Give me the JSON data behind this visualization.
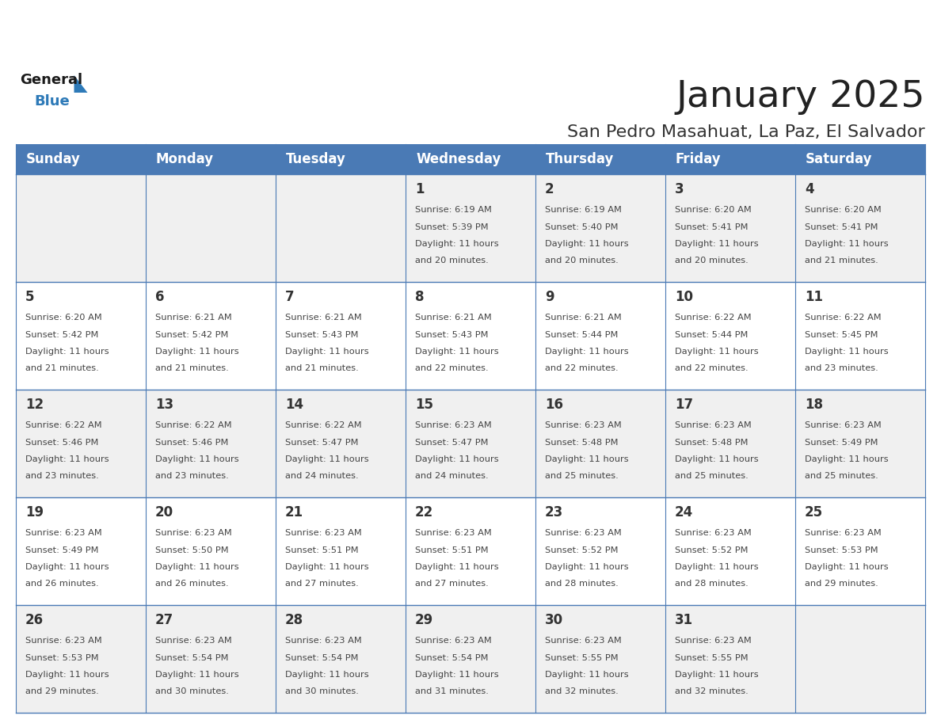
{
  "title": "January 2025",
  "subtitle": "San Pedro Masahuat, La Paz, El Salvador",
  "days_of_week": [
    "Sunday",
    "Monday",
    "Tuesday",
    "Wednesday",
    "Thursday",
    "Friday",
    "Saturday"
  ],
  "header_bg": "#4a7ab5",
  "header_text": "#ffffff",
  "cell_bg_odd": "#f0f0f0",
  "cell_bg_even": "#ffffff",
  "grid_line_color": "#4a7ab5",
  "title_color": "#222222",
  "subtitle_color": "#333333",
  "day_number_color": "#333333",
  "cell_text_color": "#444444",
  "logo_dark_color": "#1a1a1a",
  "logo_blue_color": "#2e7ab8",
  "calendar_data": [
    [
      null,
      null,
      null,
      {
        "day": 1,
        "sunrise": "6:19 AM",
        "sunset": "5:39 PM",
        "daylight": "11 hours",
        "daylight2": "and 20 minutes."
      },
      {
        "day": 2,
        "sunrise": "6:19 AM",
        "sunset": "5:40 PM",
        "daylight": "11 hours",
        "daylight2": "and 20 minutes."
      },
      {
        "day": 3,
        "sunrise": "6:20 AM",
        "sunset": "5:41 PM",
        "daylight": "11 hours",
        "daylight2": "and 20 minutes."
      },
      {
        "day": 4,
        "sunrise": "6:20 AM",
        "sunset": "5:41 PM",
        "daylight": "11 hours",
        "daylight2": "and 21 minutes."
      }
    ],
    [
      {
        "day": 5,
        "sunrise": "6:20 AM",
        "sunset": "5:42 PM",
        "daylight": "11 hours",
        "daylight2": "and 21 minutes."
      },
      {
        "day": 6,
        "sunrise": "6:21 AM",
        "sunset": "5:42 PM",
        "daylight": "11 hours",
        "daylight2": "and 21 minutes."
      },
      {
        "day": 7,
        "sunrise": "6:21 AM",
        "sunset": "5:43 PM",
        "daylight": "11 hours",
        "daylight2": "and 21 minutes."
      },
      {
        "day": 8,
        "sunrise": "6:21 AM",
        "sunset": "5:43 PM",
        "daylight": "11 hours",
        "daylight2": "and 22 minutes."
      },
      {
        "day": 9,
        "sunrise": "6:21 AM",
        "sunset": "5:44 PM",
        "daylight": "11 hours",
        "daylight2": "and 22 minutes."
      },
      {
        "day": 10,
        "sunrise": "6:22 AM",
        "sunset": "5:44 PM",
        "daylight": "11 hours",
        "daylight2": "and 22 minutes."
      },
      {
        "day": 11,
        "sunrise": "6:22 AM",
        "sunset": "5:45 PM",
        "daylight": "11 hours",
        "daylight2": "and 23 minutes."
      }
    ],
    [
      {
        "day": 12,
        "sunrise": "6:22 AM",
        "sunset": "5:46 PM",
        "daylight": "11 hours",
        "daylight2": "and 23 minutes."
      },
      {
        "day": 13,
        "sunrise": "6:22 AM",
        "sunset": "5:46 PM",
        "daylight": "11 hours",
        "daylight2": "and 23 minutes."
      },
      {
        "day": 14,
        "sunrise": "6:22 AM",
        "sunset": "5:47 PM",
        "daylight": "11 hours",
        "daylight2": "and 24 minutes."
      },
      {
        "day": 15,
        "sunrise": "6:23 AM",
        "sunset": "5:47 PM",
        "daylight": "11 hours",
        "daylight2": "and 24 minutes."
      },
      {
        "day": 16,
        "sunrise": "6:23 AM",
        "sunset": "5:48 PM",
        "daylight": "11 hours",
        "daylight2": "and 25 minutes."
      },
      {
        "day": 17,
        "sunrise": "6:23 AM",
        "sunset": "5:48 PM",
        "daylight": "11 hours",
        "daylight2": "and 25 minutes."
      },
      {
        "day": 18,
        "sunrise": "6:23 AM",
        "sunset": "5:49 PM",
        "daylight": "11 hours",
        "daylight2": "and 25 minutes."
      }
    ],
    [
      {
        "day": 19,
        "sunrise": "6:23 AM",
        "sunset": "5:49 PM",
        "daylight": "11 hours",
        "daylight2": "and 26 minutes."
      },
      {
        "day": 20,
        "sunrise": "6:23 AM",
        "sunset": "5:50 PM",
        "daylight": "11 hours",
        "daylight2": "and 26 minutes."
      },
      {
        "day": 21,
        "sunrise": "6:23 AM",
        "sunset": "5:51 PM",
        "daylight": "11 hours",
        "daylight2": "and 27 minutes."
      },
      {
        "day": 22,
        "sunrise": "6:23 AM",
        "sunset": "5:51 PM",
        "daylight": "11 hours",
        "daylight2": "and 27 minutes."
      },
      {
        "day": 23,
        "sunrise": "6:23 AM",
        "sunset": "5:52 PM",
        "daylight": "11 hours",
        "daylight2": "and 28 minutes."
      },
      {
        "day": 24,
        "sunrise": "6:23 AM",
        "sunset": "5:52 PM",
        "daylight": "11 hours",
        "daylight2": "and 28 minutes."
      },
      {
        "day": 25,
        "sunrise": "6:23 AM",
        "sunset": "5:53 PM",
        "daylight": "11 hours",
        "daylight2": "and 29 minutes."
      }
    ],
    [
      {
        "day": 26,
        "sunrise": "6:23 AM",
        "sunset": "5:53 PM",
        "daylight": "11 hours",
        "daylight2": "and 29 minutes."
      },
      {
        "day": 27,
        "sunrise": "6:23 AM",
        "sunset": "5:54 PM",
        "daylight": "11 hours",
        "daylight2": "and 30 minutes."
      },
      {
        "day": 28,
        "sunrise": "6:23 AM",
        "sunset": "5:54 PM",
        "daylight": "11 hours",
        "daylight2": "and 30 minutes."
      },
      {
        "day": 29,
        "sunrise": "6:23 AM",
        "sunset": "5:54 PM",
        "daylight": "11 hours",
        "daylight2": "and 31 minutes."
      },
      {
        "day": 30,
        "sunrise": "6:23 AM",
        "sunset": "5:55 PM",
        "daylight": "11 hours",
        "daylight2": "and 32 minutes."
      },
      {
        "day": 31,
        "sunrise": "6:23 AM",
        "sunset": "5:55 PM",
        "daylight": "11 hours",
        "daylight2": "and 32 minutes."
      },
      null
    ]
  ]
}
